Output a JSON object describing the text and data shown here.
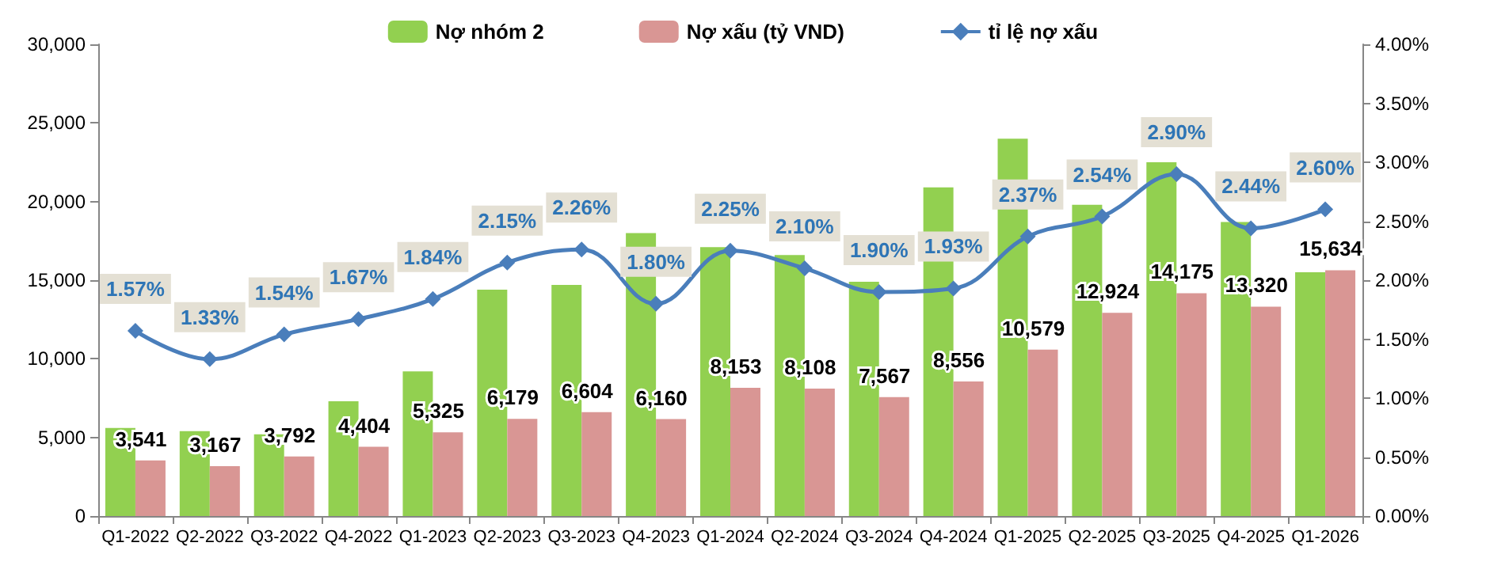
{
  "chart_data": {
    "type": "bar",
    "categories": [
      "Q1-2022",
      "Q2-2022",
      "Q3-2022",
      "Q4-2022",
      "Q1-2023",
      "Q2-2023",
      "Q3-2023",
      "Q4-2023",
      "Q1-2024",
      "Q2-2024",
      "Q3-2024",
      "Q4-2024",
      "Q1-2025",
      "Q2-2025",
      "Q3-2025",
      "Q4-2025",
      "Q1-2026"
    ],
    "series": [
      {
        "name": "Nợ nhóm 2",
        "color": "#92d050",
        "values": [
          5600,
          5400,
          5200,
          7300,
          9200,
          14400,
          14700,
          18000,
          17100,
          16600,
          14900,
          20900,
          24000,
          19800,
          22500,
          18700,
          15500
        ]
      },
      {
        "name": "Nợ xấu (tỷ VND)",
        "color": "#d99694",
        "values": [
          3541,
          3167,
          3792,
          4404,
          5325,
          6179,
          6604,
          6160,
          8153,
          8108,
          7567,
          8556,
          10579,
          12924,
          14175,
          13320,
          15634
        ],
        "value_labels": [
          "3,541",
          "3,167",
          "3,792",
          "4,404",
          "5,325",
          "6,179",
          "6,604",
          "6,160",
          "8,153",
          "8,108",
          "7,567",
          "8,556",
          "10,579",
          "12,924",
          "14,175",
          "13,320",
          "15,634"
        ]
      },
      {
        "name": "tỉ lệ nợ xấu",
        "type": "line",
        "axis": "y2",
        "color": "#4a7ebb",
        "marker": "diamond",
        "values": [
          1.57,
          1.33,
          1.54,
          1.67,
          1.84,
          2.15,
          2.26,
          1.8,
          2.25,
          2.1,
          1.9,
          1.93,
          2.37,
          2.54,
          2.9,
          2.44,
          2.6
        ],
        "value_labels": [
          "1.57%",
          "1.33%",
          "1.54%",
          "1.67%",
          "1.84%",
          "2.15%",
          "2.26%",
          "1.80%",
          "2.25%",
          "2.10%",
          "1.90%",
          "1.93%",
          "2.37%",
          "2.54%",
          "2.90%",
          "2.44%",
          "2.60%"
        ]
      }
    ],
    "ylim": [
      0,
      30000
    ],
    "yticks": [
      {
        "value": 0,
        "label": "0"
      },
      {
        "value": 5000,
        "label": "5,000"
      },
      {
        "value": 10000,
        "label": "10,000"
      },
      {
        "value": 15000,
        "label": "15,000"
      },
      {
        "value": 20000,
        "label": "20,000"
      },
      {
        "value": 25000,
        "label": "25,000"
      },
      {
        "value": 30000,
        "label": "30,000"
      }
    ],
    "y2lim": [
      0,
      4
    ],
    "y2ticks": [
      {
        "value": 0,
        "label": "0.00%"
      },
      {
        "value": 0.5,
        "label": "0.50%"
      },
      {
        "value": 1,
        "label": "1.00%"
      },
      {
        "value": 1.5,
        "label": "1.50%"
      },
      {
        "value": 2,
        "label": "2.00%"
      },
      {
        "value": 2.5,
        "label": "2.50%"
      },
      {
        "value": 3,
        "label": "3.00%"
      },
      {
        "value": 3.5,
        "label": "3.50%"
      },
      {
        "value": 4,
        "label": "4.00%"
      }
    ],
    "legend": "top",
    "grid": false
  }
}
